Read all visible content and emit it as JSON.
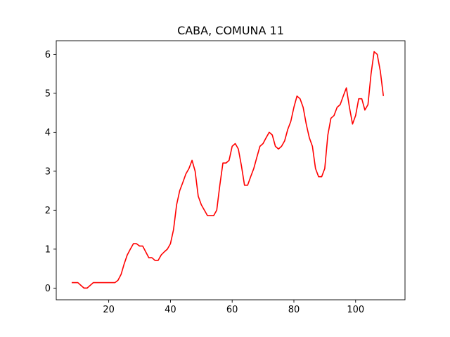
{
  "chart_data": {
    "type": "line",
    "title": "CABA, COMUNA 11",
    "xlabel": "",
    "ylabel": "",
    "xlim": [
      3,
      116
    ],
    "ylim": [
      -0.3,
      6.35
    ],
    "xticks": [
      20,
      40,
      60,
      80,
      100
    ],
    "yticks": [
      0,
      1,
      2,
      3,
      4,
      5,
      6
    ],
    "grid": false,
    "line_color": "#ff0000",
    "series": [
      {
        "x": [
          8,
          9,
          10,
          11,
          12,
          13,
          14,
          15,
          16,
          17,
          18,
          19,
          20,
          21,
          22,
          23,
          24,
          25,
          26,
          27,
          28,
          29,
          30,
          31,
          32,
          33,
          34,
          35,
          36,
          37,
          38,
          39,
          40,
          41,
          42,
          43,
          44,
          45,
          46,
          47,
          48,
          49,
          50,
          51,
          52,
          53,
          54,
          55,
          56,
          57,
          58,
          59,
          60,
          61,
          62,
          63,
          64,
          65,
          66,
          67,
          68,
          69,
          70,
          71,
          72,
          73,
          74,
          75,
          76,
          77,
          78,
          79,
          80,
          81,
          82,
          83,
          84,
          85,
          86,
          87,
          88,
          89,
          90,
          91,
          92,
          93,
          94,
          95,
          96,
          97,
          98,
          99,
          100,
          101,
          102,
          103,
          104,
          105,
          106,
          107,
          108,
          109
        ],
        "y": [
          0.14,
          0.14,
          0.14,
          0.07,
          0,
          0,
          0.07,
          0.14,
          0.14,
          0.14,
          0.14,
          0.14,
          0.14,
          0.14,
          0.14,
          0.2,
          0.35,
          0.62,
          0.85,
          1.0,
          1.14,
          1.14,
          1.08,
          1.08,
          0.93,
          0.78,
          0.78,
          0.71,
          0.71,
          0.85,
          0.93,
          1.0,
          1.14,
          1.5,
          2.14,
          2.5,
          2.71,
          2.93,
          3.07,
          3.28,
          3.0,
          2.36,
          2.14,
          2.0,
          1.86,
          1.86,
          1.86,
          2.0,
          2.64,
          3.21,
          3.21,
          3.28,
          3.64,
          3.71,
          3.57,
          3.14,
          2.64,
          2.64,
          2.86,
          3.07,
          3.36,
          3.64,
          3.71,
          3.86,
          4.0,
          3.93,
          3.64,
          3.57,
          3.64,
          3.78,
          4.07,
          4.28,
          4.64,
          4.93,
          4.86,
          4.64,
          4.21,
          3.86,
          3.64,
          3.07,
          2.86,
          2.86,
          3.07,
          3.93,
          4.36,
          4.43,
          4.64,
          4.71,
          4.93,
          5.14,
          4.64,
          4.21,
          4.43,
          4.86,
          4.86,
          4.57,
          4.71,
          5.5,
          6.07,
          6.0,
          5.57,
          4.93
        ]
      }
    ]
  }
}
